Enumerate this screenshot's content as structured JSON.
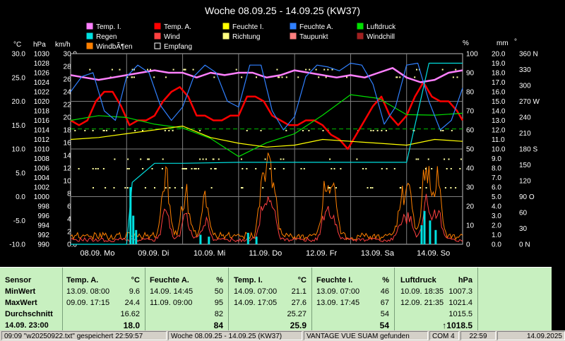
{
  "chart_data": {
    "type": "line",
    "title": "Woche 08.09.25 - 14.09.25 (KW37)",
    "legend": [
      {
        "name": "Temp. I.",
        "color": "#ff80ff"
      },
      {
        "name": "Temp. A.",
        "color": "#ff0000"
      },
      {
        "name": "Feuchte I.",
        "color": "#ffff00"
      },
      {
        "name": "Feuchte A.",
        "color": "#3080ff"
      },
      {
        "name": "Luftdruck",
        "color": "#00e000"
      },
      {
        "name": "Regen",
        "color": "#00e0e0"
      },
      {
        "name": "Wind",
        "color": "#ff4040"
      },
      {
        "name": "Richtung",
        "color": "#ffff80"
      },
      {
        "name": "Taupunkt",
        "color": "#ff8080"
      },
      {
        "name": "Windchill",
        "color": "#a02020"
      },
      {
        "name": "WindbÃ¶en",
        "color": "#ff8000"
      },
      {
        "name": "Empfang",
        "color": "#ffffff"
      }
    ],
    "axis_units": {
      "temp": "°C",
      "pressure": "hPa",
      "wind": "km/h",
      "humidity": "%",
      "rain": "mm",
      "direction": "°"
    },
    "temp_axis_ticks": [
      "30.0",
      "25.0",
      "20.0",
      "15.0",
      "10.0",
      "5.0",
      "0.0",
      "-5.0",
      "-10.0"
    ],
    "pressure_axis_ticks": [
      "1030",
      "1028",
      "1026",
      "1024",
      "1022",
      "1020",
      "1018",
      "1016",
      "1014",
      "1012",
      "1010",
      "1008",
      "1006",
      "1004",
      "1002",
      "1000",
      "998",
      "996",
      "994",
      "992",
      "990"
    ],
    "wind_axis_ticks": [
      "30.0",
      "28.0",
      "26.0",
      "24.0",
      "22.0",
      "20.0",
      "18.0",
      "16.0",
      "14.0",
      "12.0",
      "10.0",
      "8.0",
      "6.0",
      "4.0",
      "2.0",
      "0.0"
    ],
    "humidity_axis_ticks": [
      "100",
      "90",
      "80",
      "70",
      "60",
      "50",
      "40",
      "30",
      "20",
      "10",
      "0"
    ],
    "rain_axis_ticks": [
      "20.0",
      "19.0",
      "18.0",
      "17.0",
      "16.0",
      "15.0",
      "14.0",
      "13.0",
      "12.0",
      "11.0",
      "10.0",
      "9.0",
      "8.0",
      "7.0",
      "6.0",
      "5.0",
      "4.0",
      "3.0",
      "2.0",
      "1.0",
      "0.0"
    ],
    "direction_axis_ticks": [
      "360 N",
      "330",
      "300",
      "270 W",
      "240",
      "210",
      "180 S",
      "150",
      "120",
      "90 O",
      "60",
      "30",
      "0 N"
    ],
    "x_labels": [
      "08.09. Mo",
      "09.09. Di",
      "10.09. Mi",
      "11.09. Do",
      "12.09. Fr",
      "13.09. Sa",
      "14.09. So"
    ],
    "temp_ylim": [
      -10,
      30
    ],
    "pressure_ylim": [
      990,
      1030
    ],
    "humidity_ylim": [
      0,
      100
    ],
    "rain_ylim": [
      0,
      20
    ],
    "x_days": 7,
    "series": [
      {
        "name": "Temp. A.",
        "color": "#ff0000",
        "x": [
          0,
          0.15,
          0.3,
          0.45,
          0.6,
          0.75,
          0.9,
          1.05,
          1.2,
          1.35,
          1.5,
          1.65,
          1.8,
          1.95,
          2.1,
          2.25,
          2.4,
          2.55,
          2.7,
          2.85,
          3.0,
          3.15,
          3.3,
          3.45,
          3.6,
          3.75,
          3.9,
          4.05,
          4.2,
          4.35,
          4.5,
          4.65,
          4.8,
          4.95,
          5.1,
          5.25,
          5.4,
          5.55,
          5.7,
          5.85,
          6.0,
          6.15,
          6.3,
          6.45,
          6.6,
          6.75,
          6.9,
          7.0
        ],
        "values": [
          16,
          15,
          16,
          20,
          22,
          22,
          19,
          15,
          16,
          16,
          17,
          20,
          22,
          23,
          21,
          17,
          17,
          16,
          16,
          17,
          17,
          21,
          21,
          20,
          17,
          16,
          15,
          15,
          16,
          16,
          15,
          13,
          12,
          10,
          13,
          16,
          19,
          21,
          17,
          15,
          17,
          21,
          24,
          21,
          20,
          20,
          18,
          16
        ]
      },
      {
        "name": "Temp. I.",
        "color": "#ff80ff",
        "x": [
          0,
          0.25,
          0.5,
          0.75,
          1.0,
          1.25,
          1.5,
          1.75,
          2.0,
          2.25,
          2.5,
          2.75,
          3.0,
          3.25,
          3.5,
          3.75,
          4.0,
          4.25,
          4.5,
          4.75,
          5.0,
          5.25,
          5.5,
          5.75,
          6.0,
          6.25,
          6.5,
          6.75,
          7.0
        ],
        "values": [
          25.5,
          25,
          24.5,
          25,
          25.5,
          26,
          26.5,
          26,
          26,
          25,
          26,
          25.5,
          26,
          26,
          25,
          25.5,
          26.5,
          26,
          25.5,
          25,
          25.5,
          25,
          26,
          27,
          25,
          24,
          24.5,
          26,
          26.5
        ]
      },
      {
        "name": "Luftdruck",
        "color": "#00e000",
        "x": [
          0,
          0.5,
          1.0,
          1.5,
          2.0,
          2.5,
          3.0,
          3.5,
          4.0,
          4.5,
          5.0,
          5.5,
          6.0,
          6.5,
          7.0
        ],
        "values": [
          1016,
          1017,
          1016.6,
          1015.2,
          1014.4,
          1012.2,
          1008.4,
          1011.3,
          1013.2,
          1017.1,
          1021.4,
          1020.6,
          1017.2,
          1017.1,
          1017.5
        ]
      },
      {
        "name": "Feuchte A.",
        "color": "#3080ff",
        "x": [
          0,
          0.2,
          0.4,
          0.6,
          0.8,
          1.0,
          1.2,
          1.4,
          1.6,
          1.8,
          2.0,
          2.2,
          2.4,
          2.6,
          2.8,
          3.0,
          3.2,
          3.4,
          3.6,
          3.8,
          4.0,
          4.2,
          4.4,
          4.6,
          4.8,
          5.0,
          5.2,
          5.4,
          5.6,
          5.8,
          6.0,
          6.2,
          6.4,
          6.6,
          6.8,
          7.0
        ],
        "values": [
          80,
          88,
          90,
          70,
          65,
          88,
          94,
          90,
          73,
          65,
          72,
          88,
          94,
          90,
          75,
          72,
          94,
          94,
          70,
          60,
          67,
          88,
          94,
          93,
          91,
          95,
          94,
          84,
          63,
          72,
          94,
          95,
          75,
          60,
          65,
          82
        ]
      },
      {
        "name": "Feuchte I.",
        "color": "#ffff00",
        "x": [
          0,
          0.5,
          1.0,
          1.5,
          2.0,
          2.5,
          3.0,
          3.5,
          4.0,
          4.5,
          5.0,
          5.5,
          6.0,
          6.5,
          7.0
        ],
        "values": [
          55,
          56,
          58,
          60,
          62,
          56,
          53,
          51,
          52,
          55,
          54,
          53,
          52,
          55,
          54
        ]
      },
      {
        "name": "Regen",
        "color": "#00e0e0",
        "x": [
          0,
          1.0,
          1.1,
          1.5,
          2.0,
          3.0,
          3.5,
          4.0,
          5.0,
          6.0,
          6.4,
          7.0
        ],
        "values": [
          0,
          0,
          6.5,
          8.5,
          8.5,
          8.6,
          8.6,
          8.6,
          8.6,
          8.6,
          19.0,
          19.0
        ]
      }
    ]
  },
  "stats": {
    "headers": {
      "sensor": "Sensor",
      "temp_a": "Temp. A.",
      "temp_a_unit": "°C",
      "feuchte_a": "Feuchte A.",
      "feuchte_a_unit": "%",
      "temp_i": "Temp. I.",
      "temp_i_unit": "°C",
      "feuchte_i": "Feuchte I.",
      "feuchte_i_unit": "%",
      "luftdruck": "Luftdruck",
      "luftdruck_unit": "hPa"
    },
    "labels": {
      "min": "MinWert",
      "max": "MaxWert",
      "avg": "Durchschnitt",
      "current": "14.09. 23:00"
    },
    "temp_a": {
      "min_time": "13.09.  08:00",
      "min": "9.6",
      "max_time": "09.09.  17:15",
      "max": "24.4",
      "avg": "16.62",
      "current": "18.0"
    },
    "feuchte_a": {
      "min_time": "14.09.  14:45",
      "min": "50",
      "max_time": "11.09.  09:00",
      "max": "95",
      "avg": "82",
      "current": "84"
    },
    "temp_i": {
      "min_time": "14.09.  07:00",
      "min": "21.1",
      "max_time": "14.09.  17:05",
      "max": "27.6",
      "avg": "25.27",
      "current": "25.9"
    },
    "feuchte_i": {
      "min_time": "13.09.  07:00",
      "min": "46",
      "max_time": "13.09.  17:45",
      "max": "67",
      "avg": "54",
      "current": "54"
    },
    "luftdruck": {
      "min_time": "10.09.  18:35",
      "min": "1007.3",
      "max_time": "12.09.  21:35",
      "max": "1021.4",
      "avg": "1015.5",
      "current": "↑1018.5"
    }
  },
  "statusbar": {
    "file": "09:09 \"w20250922.txt\" gespeichert    22:59:57",
    "week": "Woche 08.09.25 - 14.09.25 (KW37)",
    "station": "VANTAGE VUE SUAM gefunden",
    "port": "COM 4",
    "time": "22:59",
    "date": "14.09.2025"
  }
}
